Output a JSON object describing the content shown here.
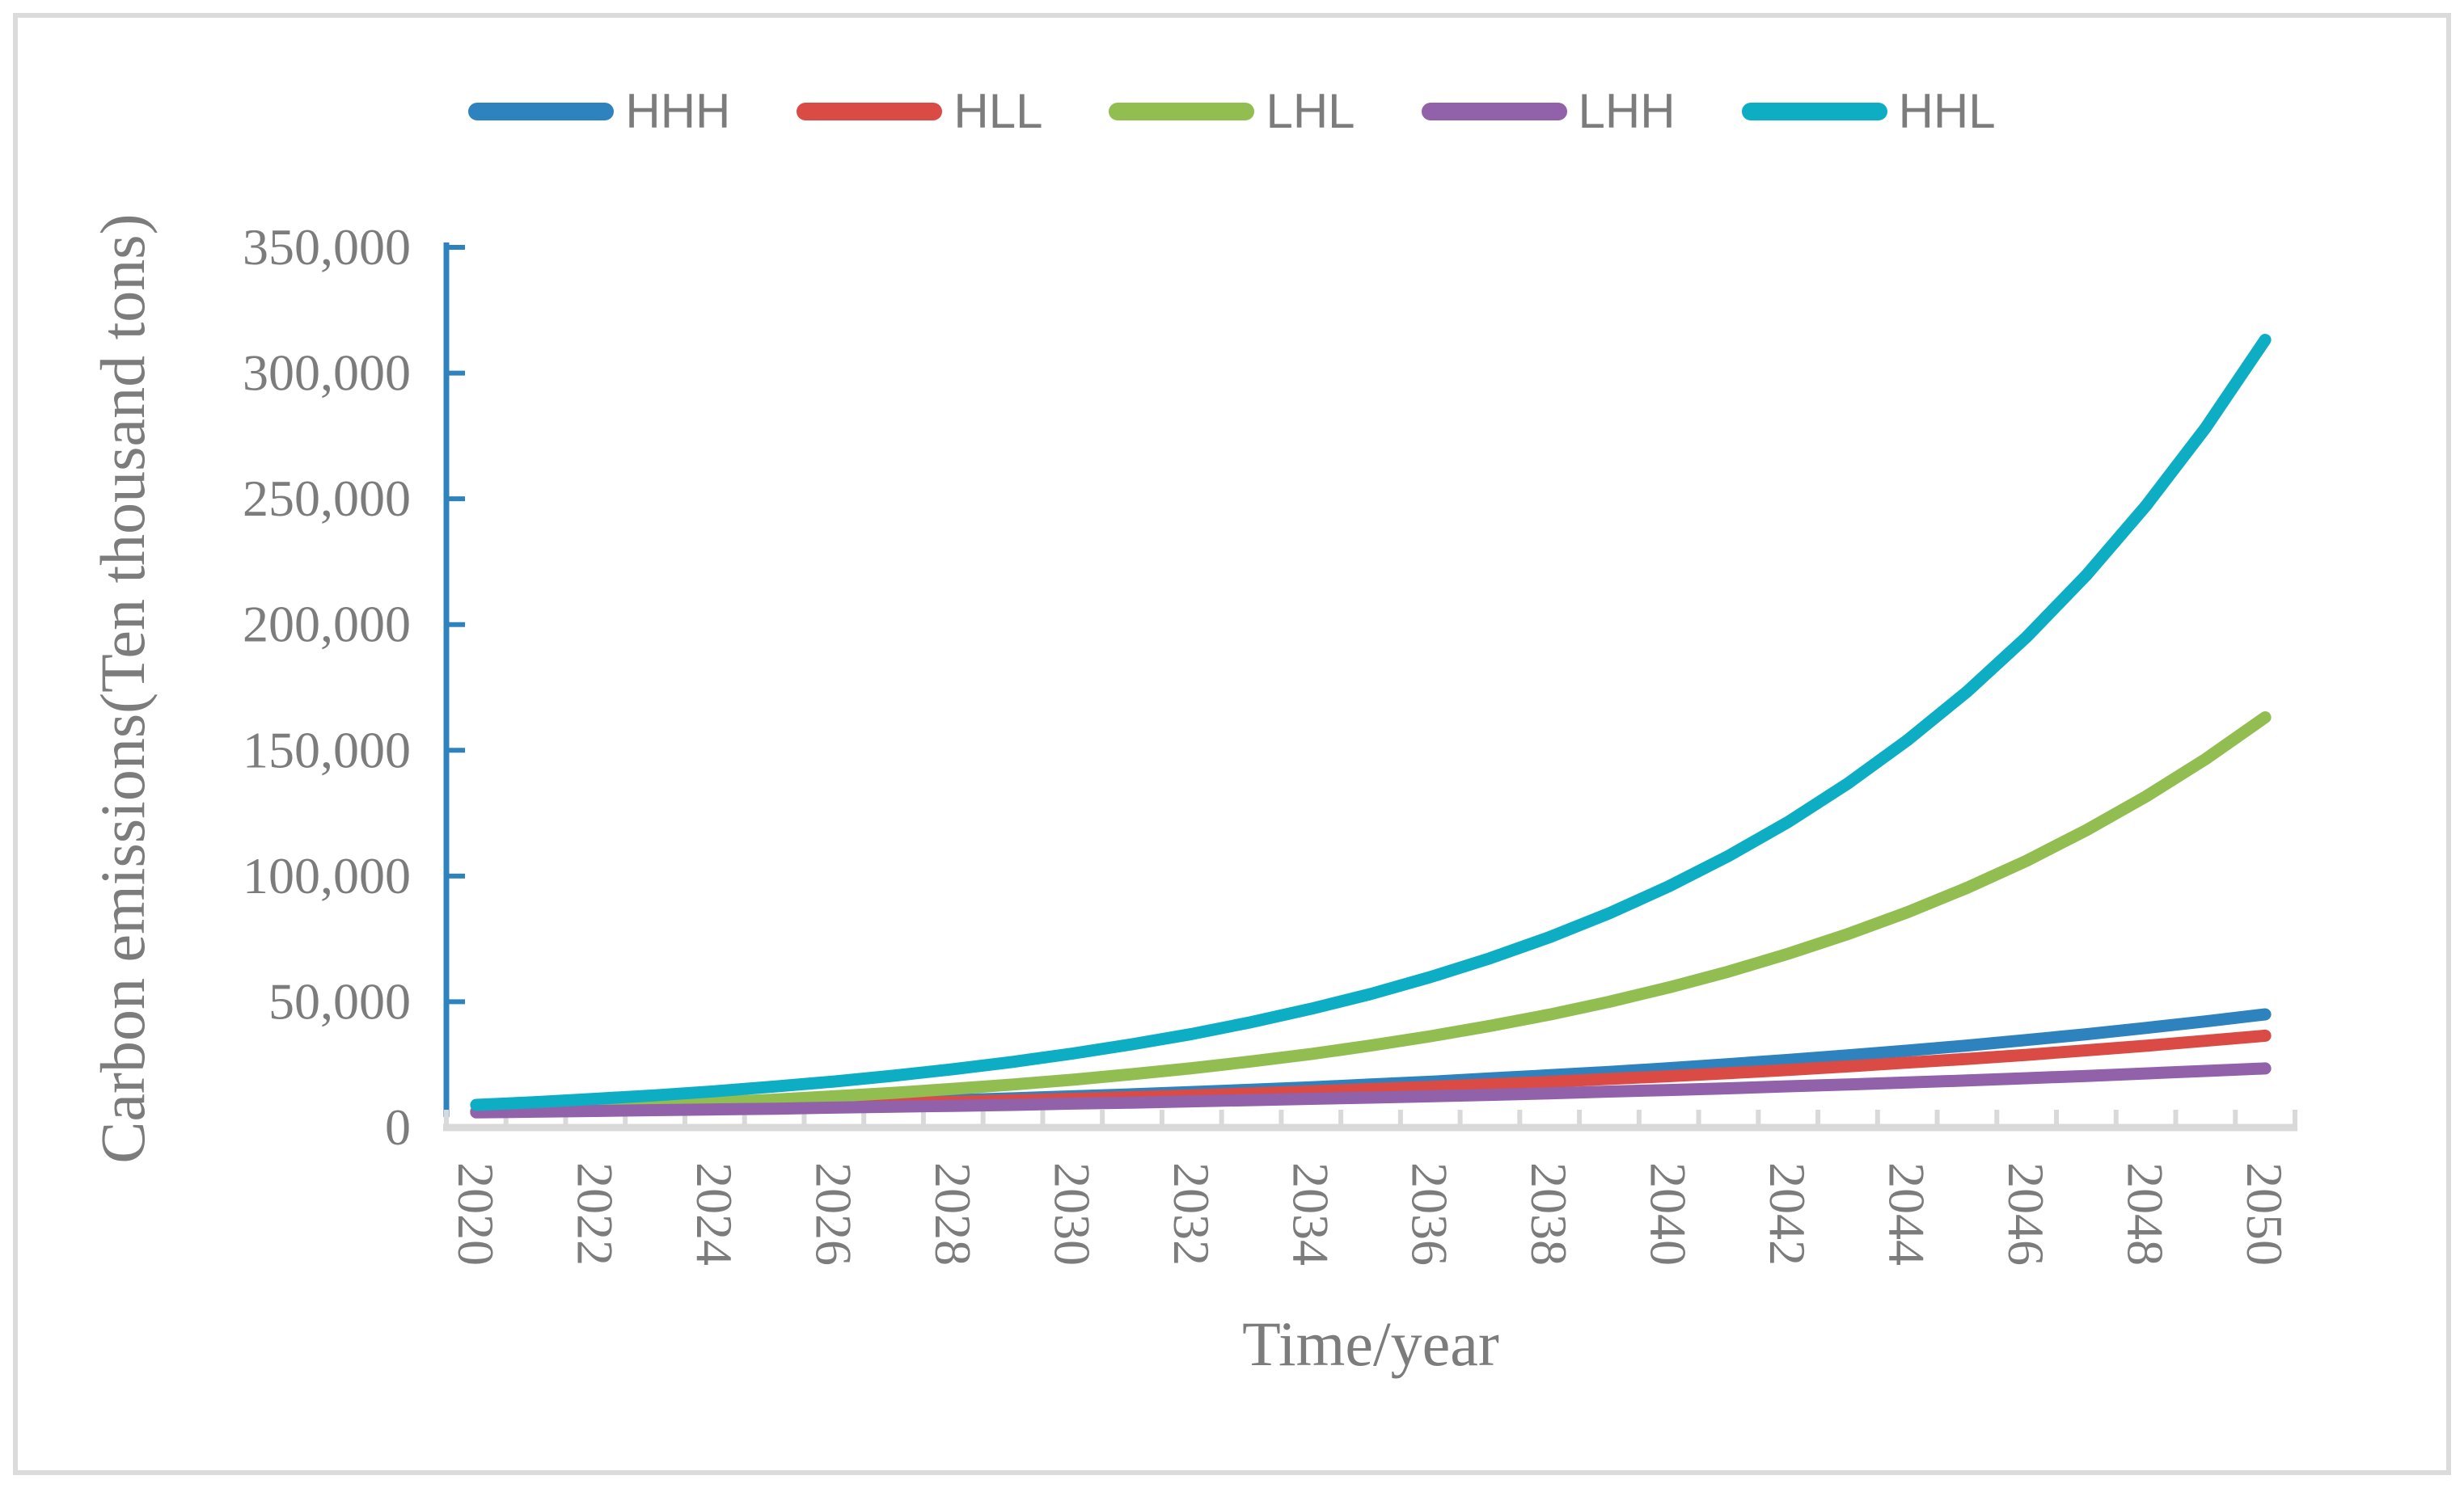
{
  "figure": {
    "background": "#FFFFFF",
    "border_color": "#DBDBDB"
  },
  "styles": {
    "y_axis_color": "#2E83BF",
    "x_axis_color": "#D9D9D9",
    "text_color": "#7C7C7C",
    "series_stroke_width": 15
  },
  "chart_data": {
    "type": "line",
    "title": "",
    "xlabel": "Time/year",
    "ylabel": "Carbon emissions(Ten thousand tons)",
    "grid": false,
    "legend_position": "top",
    "ylim": [
      0,
      350000
    ],
    "y_ticks": [
      0,
      50000,
      100000,
      150000,
      200000,
      250000,
      300000,
      350000
    ],
    "y_tick_labels": [
      "0",
      "50,000",
      "100,000",
      "150,000",
      "200,000",
      "250,000",
      "300,000",
      "350,000"
    ],
    "x": [
      2020,
      2021,
      2022,
      2023,
      2024,
      2025,
      2026,
      2027,
      2028,
      2029,
      2030,
      2031,
      2032,
      2033,
      2034,
      2035,
      2036,
      2037,
      2038,
      2039,
      2040,
      2041,
      2042,
      2043,
      2044,
      2045,
      2046,
      2047,
      2048,
      2049,
      2050
    ],
    "x_tick_labels": [
      "2020",
      "2022",
      "2024",
      "2026",
      "2028",
      "2030",
      "2032",
      "2034",
      "2036",
      "2038",
      "2040",
      "2042",
      "2044",
      "2046",
      "2048",
      "2050"
    ],
    "series": [
      {
        "name": "HHH",
        "color": "#2E83BF",
        "values": [
          6500,
          6900,
          7400,
          7900,
          8400,
          9000,
          9600,
          10200,
          10900,
          11600,
          12400,
          13200,
          14100,
          15000,
          16000,
          17100,
          18200,
          19500,
          20800,
          22100,
          23600,
          25200,
          26900,
          28700,
          30600,
          32600,
          34800,
          37100,
          39600,
          42200,
          45000
        ]
      },
      {
        "name": "HLL",
        "color": "#DB4B46",
        "values": [
          6400,
          6800,
          7200,
          7600,
          8100,
          8600,
          9100,
          9600,
          10200,
          10800,
          11400,
          12100,
          12800,
          13600,
          14400,
          15300,
          16200,
          17200,
          18200,
          19300,
          20400,
          21600,
          22900,
          24300,
          25800,
          27300,
          28900,
          30700,
          32500,
          34500,
          36500
        ]
      },
      {
        "name": "LHL",
        "color": "#92BE51",
        "values": [
          6500,
          7200,
          8100,
          9000,
          10000,
          11100,
          12400,
          13800,
          15400,
          17100,
          19000,
          21200,
          23600,
          26300,
          29200,
          32600,
          36300,
          40400,
          44900,
          50000,
          55700,
          62000,
          69100,
          76900,
          85600,
          95300,
          106100,
          118200,
          131600,
          146500,
          163100
        ]
      },
      {
        "name": "LHH",
        "color": "#9161AA",
        "values": [
          6000,
          6300,
          6600,
          6900,
          7200,
          7500,
          7900,
          8300,
          8600,
          9000,
          9500,
          9900,
          10400,
          10900,
          11400,
          11900,
          12400,
          13000,
          13600,
          14300,
          14900,
          15600,
          16400,
          17100,
          17900,
          18700,
          19600,
          20500,
          21500,
          22500,
          23500
        ]
      },
      {
        "name": "HHL",
        "color": "#0DAEC4",
        "values": [
          9000,
          10100,
          11400,
          12800,
          14400,
          16300,
          18300,
          20600,
          23200,
          26100,
          29400,
          33100,
          37200,
          41900,
          47200,
          53100,
          59800,
          67300,
          75700,
          85200,
          95900,
          108000,
          121500,
          136800,
          154000,
          173300,
          195100,
          219600,
          247200,
          278200,
          313200
        ]
      }
    ]
  }
}
